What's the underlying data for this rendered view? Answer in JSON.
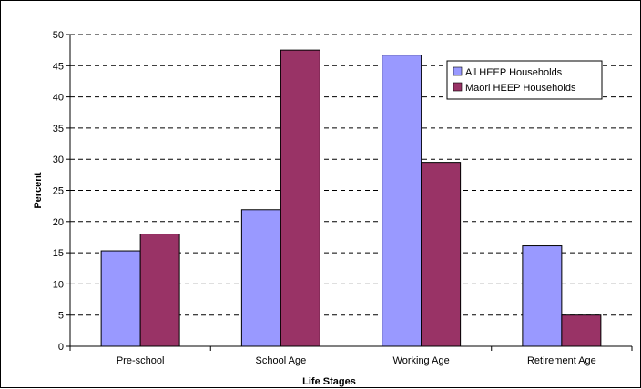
{
  "chart_data": {
    "type": "bar",
    "xlabel": "Life Stages",
    "ylabel": "Percent",
    "categories": [
      "Pre-school",
      "School Age",
      "Working Age",
      "Retirement Age"
    ],
    "series": [
      {
        "name": "All HEEP Households",
        "values": [
          15.3,
          21.9,
          46.7,
          16.1
        ],
        "color": "#9999ff"
      },
      {
        "name": "Maori HEEP Households",
        "values": [
          18.0,
          47.5,
          29.5,
          5.0
        ],
        "color": "#993366"
      }
    ],
    "ylim": [
      0,
      50
    ],
    "yticks": [
      0,
      5,
      10,
      15,
      20,
      25,
      30,
      35,
      40,
      45,
      50
    ],
    "grid": "horizontal-dashed",
    "legend_position": "top-right"
  }
}
